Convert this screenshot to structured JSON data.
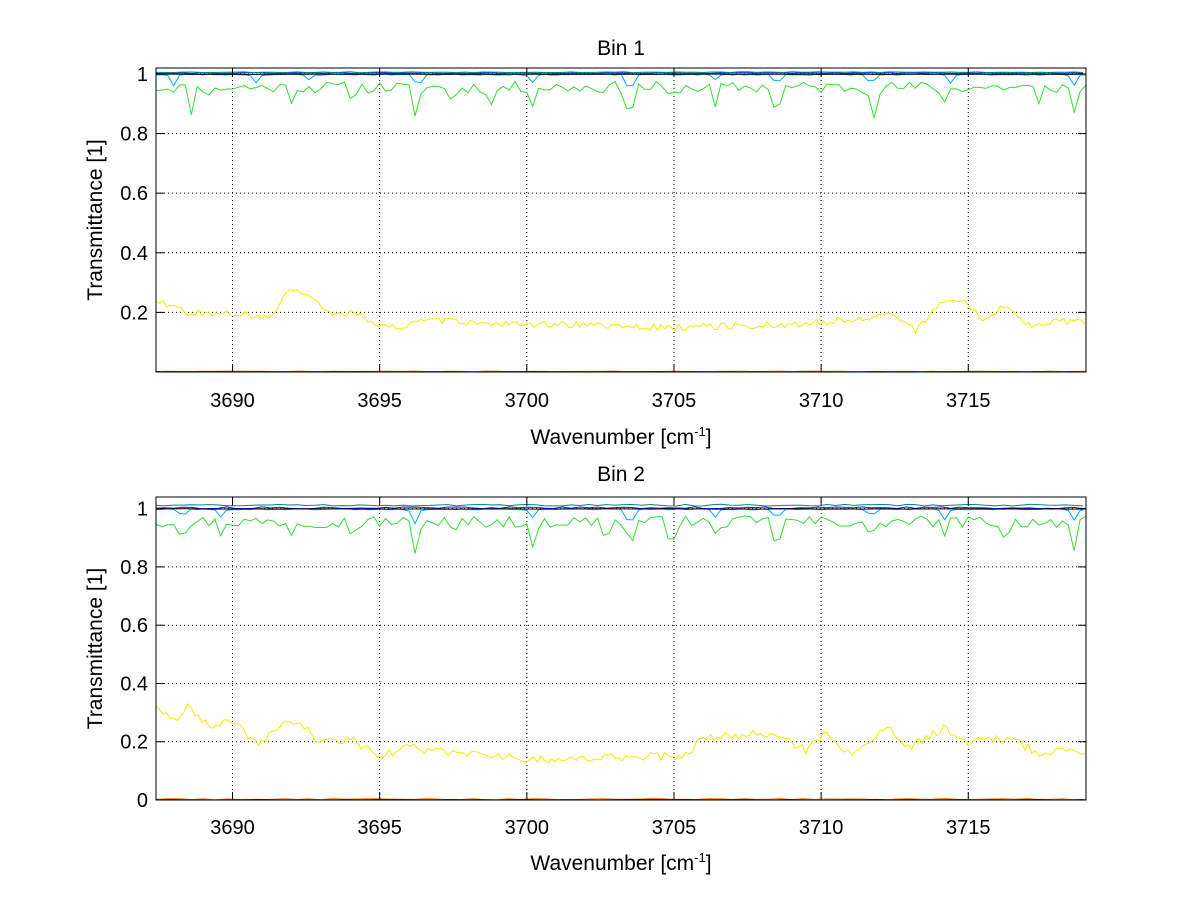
{
  "chart_data": [
    {
      "type": "line",
      "title": "Bin 1",
      "xlabel": "Wavenumber [cm",
      "xlabel_sup": "-1",
      "xlabel_end": "]",
      "ylabel": "Transmittance [1]",
      "xlim": [
        3687.4,
        3719.0
      ],
      "ylim": [
        0,
        1.02
      ],
      "xticks": [
        3690,
        3695,
        3700,
        3705,
        3710,
        3715
      ],
      "yticks": [
        0.2,
        0.4,
        0.6,
        0.8,
        1
      ],
      "xtick_labels": [
        "3690",
        "3695",
        "3700",
        "3705",
        "3710",
        "3715"
      ],
      "ytick_labels": [
        "0.2",
        "0.4",
        "0.6",
        "0.8",
        "1"
      ],
      "grid": true,
      "series": [
        {
          "name": "green",
          "color": "#33dd33",
          "base": 0.955,
          "noise": 0.02,
          "step": 0.2,
          "seed": 11,
          "dips": [
            [
              3688.6,
              0.88
            ],
            [
              3689.3,
              0.93
            ],
            [
              3692.0,
              0.92
            ],
            [
              3694.1,
              0.92
            ],
            [
              3696.2,
              0.85
            ],
            [
              3697.5,
              0.9
            ],
            [
              3698.8,
              0.89
            ],
            [
              3700.2,
              0.91
            ],
            [
              3703.5,
              0.84
            ],
            [
              3704.9,
              0.9
            ],
            [
              3706.4,
              0.89
            ],
            [
              3708.5,
              0.85
            ],
            [
              3711.8,
              0.87
            ],
            [
              3714.2,
              0.9
            ],
            [
              3717.4,
              0.89
            ],
            [
              3718.6,
              0.87
            ]
          ]
        },
        {
          "name": "cyan",
          "color": "#00aaff",
          "base": 0.998,
          "noise": 0.002,
          "step": 0.2,
          "seed": 23,
          "dips": [
            [
              3688.0,
              0.96
            ],
            [
              3690.8,
              0.97
            ],
            [
              3692.6,
              0.98
            ],
            [
              3696.3,
              0.95
            ],
            [
              3700.2,
              0.97
            ],
            [
              3703.5,
              0.93
            ],
            [
              3706.4,
              0.98
            ],
            [
              3708.5,
              0.96
            ],
            [
              3711.7,
              0.96
            ],
            [
              3714.4,
              0.97
            ],
            [
              3718.6,
              0.96
            ]
          ]
        },
        {
          "name": "blue",
          "color": "#1a1aff",
          "base": 1.003,
          "noise": 0.0015,
          "step": 0.3,
          "seed": 31,
          "dips": []
        },
        {
          "name": "black",
          "color": "#000000",
          "base": 0.999,
          "noise": 0.0006,
          "step": 0.5,
          "seed": 41,
          "dips": []
        },
        {
          "name": "teal",
          "color": "#008888",
          "base": 1.006,
          "noise": 0.0015,
          "step": 0.3,
          "seed": 53,
          "dips": []
        },
        {
          "name": "yellow",
          "color": "#eeee00",
          "base": 0.155,
          "noise": 0.012,
          "step": 0.12,
          "seed": 67,
          "bumps": [
            [
              3687.5,
              0.24
            ],
            [
              3688.5,
              0.2
            ],
            [
              3690.0,
              0.2
            ],
            [
              3691.2,
              0.18
            ],
            [
              3692.0,
              0.28
            ],
            [
              3692.7,
              0.24
            ],
            [
              3693.4,
              0.19
            ],
            [
              3694.2,
              0.2
            ],
            [
              3695.0,
              0.15
            ],
            [
              3697.0,
              0.17
            ],
            [
              3704.5,
              0.15
            ],
            [
              3709.0,
              0.16
            ],
            [
              3712.4,
              0.19
            ],
            [
              3713.2,
              0.14
            ],
            [
              3714.2,
              0.24
            ],
            [
              3714.8,
              0.25
            ],
            [
              3715.4,
              0.18
            ],
            [
              3716.3,
              0.22
            ],
            [
              3717.0,
              0.16
            ],
            [
              3718.5,
              0.17
            ]
          ]
        },
        {
          "name": "orange",
          "color": "#ff7700",
          "base": 0.002,
          "noise": 0.001,
          "step": 0.4,
          "seed": 71,
          "dips": []
        },
        {
          "name": "red",
          "color": "#cc0000",
          "base": 0.001,
          "noise": 0.0006,
          "step": 0.5,
          "seed": 83,
          "dips": []
        }
      ]
    },
    {
      "type": "line",
      "title": "Bin 2",
      "xlabel": "Wavenumber [cm",
      "xlabel_sup": "-1",
      "xlabel_end": "]",
      "ylabel": "Transmittance [1]",
      "xlim": [
        3687.4,
        3719.0
      ],
      "ylim": [
        0,
        1.04
      ],
      "xticks": [
        3690,
        3695,
        3700,
        3705,
        3710,
        3715
      ],
      "yticks": [
        0,
        0.2,
        0.4,
        0.6,
        0.8,
        1
      ],
      "xtick_labels": [
        "3690",
        "3695",
        "3700",
        "3705",
        "3710",
        "3715"
      ],
      "ytick_labels": [
        "0",
        "0.2",
        "0.4",
        "0.6",
        "0.8",
        "1"
      ],
      "grid": true,
      "series": [
        {
          "name": "green",
          "color": "#33dd33",
          "base": 0.955,
          "noise": 0.02,
          "step": 0.2,
          "seed": 97,
          "dips": [
            [
              3688.3,
              0.91
            ],
            [
              3689.6,
              0.92
            ],
            [
              3692.0,
              0.92
            ],
            [
              3694.1,
              0.9
            ],
            [
              3696.2,
              0.84
            ],
            [
              3697.5,
              0.9
            ],
            [
              3700.2,
              0.85
            ],
            [
              3702.7,
              0.9
            ],
            [
              3703.5,
              0.86
            ],
            [
              3704.9,
              0.88
            ],
            [
              3706.4,
              0.9
            ],
            [
              3708.5,
              0.86
            ],
            [
              3711.7,
              0.87
            ],
            [
              3714.2,
              0.9
            ],
            [
              3716.3,
              0.87
            ],
            [
              3718.6,
              0.85
            ]
          ]
        },
        {
          "name": "cyan",
          "color": "#00aaff",
          "base": 0.998,
          "noise": 0.002,
          "step": 0.2,
          "seed": 101,
          "dips": [
            [
              3688.3,
              0.97
            ],
            [
              3689.6,
              0.97
            ],
            [
              3696.2,
              0.95
            ],
            [
              3700.2,
              0.97
            ],
            [
              3703.5,
              0.93
            ],
            [
              3706.4,
              0.97
            ],
            [
              3708.5,
              0.96
            ],
            [
              3711.7,
              0.97
            ],
            [
              3714.2,
              0.96
            ],
            [
              3718.6,
              0.96
            ]
          ]
        },
        {
          "name": "blue",
          "color": "#1a1aff",
          "base": 1.003,
          "noise": 0.003,
          "step": 0.3,
          "seed": 113,
          "dips": []
        },
        {
          "name": "black",
          "color": "#000000",
          "base": 0.999,
          "noise": 0.0006,
          "step": 0.5,
          "seed": 127,
          "dips": []
        },
        {
          "name": "teal",
          "color": "#008888",
          "base": 1.012,
          "noise": 0.003,
          "step": 0.3,
          "seed": 131,
          "dips": []
        },
        {
          "name": "yellow",
          "color": "#eeee00",
          "base": 0.18,
          "noise": 0.014,
          "step": 0.12,
          "seed": 139,
          "bumps": [
            [
              3687.4,
              0.31
            ],
            [
              3688.0,
              0.27
            ],
            [
              3688.5,
              0.32
            ],
            [
              3689.3,
              0.24
            ],
            [
              3690.0,
              0.28
            ],
            [
              3690.8,
              0.19
            ],
            [
              3692.0,
              0.28
            ],
            [
              3693.0,
              0.2
            ],
            [
              3694.0,
              0.21
            ],
            [
              3695.0,
              0.15
            ],
            [
              3696.0,
              0.18
            ],
            [
              3699.9,
              0.14
            ],
            [
              3705.3,
              0.15
            ],
            [
              3706.0,
              0.21
            ],
            [
              3708.2,
              0.23
            ],
            [
              3709.5,
              0.17
            ],
            [
              3710.2,
              0.23
            ],
            [
              3711.0,
              0.15
            ],
            [
              3712.3,
              0.25
            ],
            [
              3713.0,
              0.18
            ],
            [
              3714.2,
              0.25
            ],
            [
              3715.0,
              0.2
            ],
            [
              3716.3,
              0.21
            ],
            [
              3717.5,
              0.16
            ],
            [
              3718.5,
              0.17
            ]
          ]
        },
        {
          "name": "orange",
          "color": "#ff7700",
          "base": 0.003,
          "noise": 0.002,
          "step": 0.4,
          "seed": 149,
          "dips": []
        },
        {
          "name": "red",
          "color": "#cc0000",
          "base": 0.001,
          "noise": 0.001,
          "step": 0.5,
          "seed": 151,
          "dips": []
        }
      ]
    }
  ]
}
